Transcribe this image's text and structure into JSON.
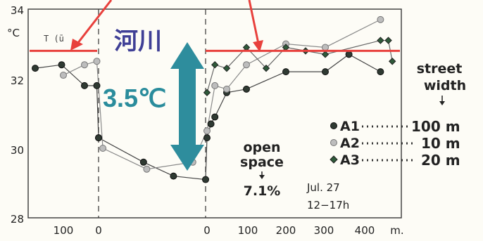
{
  "chart_data": {
    "type": "line",
    "y_ticks": [
      "28",
      "30",
      "32",
      "34"
    ],
    "y_unit": "°C",
    "ylim": [
      28,
      34
    ],
    "x_ticks_left": [
      "100",
      "0"
    ],
    "x_ticks_right": [
      "0",
      "100",
      "200",
      "300",
      "400"
    ],
    "x_unit": "m.",
    "river_label": "河川",
    "temp_diff_label": "3.5℃",
    "reference_label": "T (ū",
    "reference_lines": [
      32.8,
      32.8
    ],
    "open_space_label": [
      "open",
      "space"
    ],
    "open_space_value": "7.1%",
    "street_width_title": [
      "street",
      "width"
    ],
    "date_text": [
      "Jul. 27",
      "12−17h"
    ],
    "series": [
      {
        "name": "A1",
        "street_width": "100 m",
        "marker": "dark-circle",
        "left": {
          "x": [
            180,
            105,
            40,
            5,
            0
          ],
          "y": [
            32.3,
            32.4,
            31.8,
            31.8,
            30.3
          ]
        },
        "valley": {
          "t": [
            0,
            0.42,
            0.7,
            1.0
          ],
          "y": [
            30.3,
            29.6,
            29.2,
            29.1
          ]
        },
        "right": {
          "x": [
            0,
            10,
            20,
            50,
            100,
            200,
            300,
            360,
            440
          ],
          "y": [
            30.3,
            30.7,
            30.9,
            31.6,
            31.7,
            32.2,
            32.2,
            32.7,
            32.2
          ]
        }
      },
      {
        "name": "A2",
        "street_width": "10 m",
        "marker": "light-circle",
        "left": {
          "x": [
            100,
            40,
            5
          ],
          "y": [
            32.1,
            32.4,
            32.5
          ]
        },
        "valley": {
          "t": [
            0.04,
            0.45,
            0.88
          ],
          "y": [
            30.0,
            29.4,
            29.6
          ]
        },
        "right": {
          "x": [
            0,
            20,
            50,
            100,
            200,
            300,
            440
          ],
          "y": [
            30.5,
            31.8,
            31.7,
            32.4,
            33.0,
            32.9,
            33.7
          ]
        }
      },
      {
        "name": "A3",
        "street_width": "20 m",
        "marker": "diamond",
        "left": {
          "x": [],
          "y": []
        },
        "valley": {
          "t": [],
          "y": []
        },
        "right": {
          "x": [
            0,
            20,
            50,
            100,
            150,
            200,
            250,
            300,
            440,
            460,
            470
          ],
          "y": [
            31.6,
            32.4,
            32.3,
            32.9,
            32.3,
            32.9,
            32.8,
            32.7,
            33.1,
            33.1,
            32.5
          ]
        }
      }
    ]
  }
}
